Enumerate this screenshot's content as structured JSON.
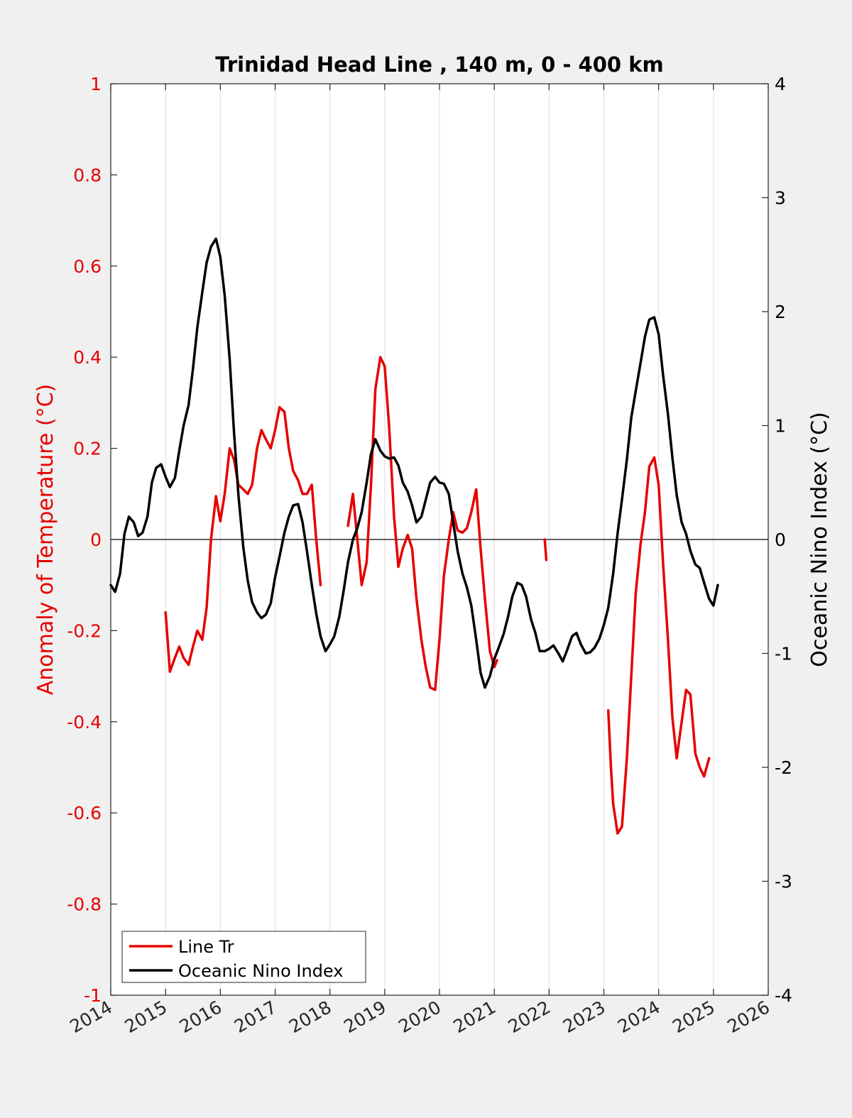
{
  "chart_data": {
    "type": "line",
    "title": "Trinidad Head Line , 140 m, 0 - 400 km",
    "ylabel": "Anomaly of Temperature (°C)",
    "y2label": "Oceanic Nino Index (°C)",
    "xlim": [
      2014,
      2026
    ],
    "ylim": [
      -1,
      1
    ],
    "y2lim": [
      -4,
      4
    ],
    "x_ticks": [
      "2014",
      "2015",
      "2016",
      "2017",
      "2018",
      "2019",
      "2020",
      "2021",
      "2022",
      "2023",
      "2024",
      "2025",
      "2026"
    ],
    "y_ticks": [
      "1",
      "0.8",
      "0.6",
      "0.4",
      "0.2",
      "0",
      "-0.2",
      "-0.4",
      "-0.6",
      "-0.8",
      "-1"
    ],
    "y2_ticks": [
      "4",
      "3",
      "2",
      "1",
      "0",
      "-1",
      "-2",
      "-3",
      "-4"
    ],
    "grid": "vertical",
    "legend": "bottom-left",
    "colors": {
      "line_tr": "#e60000",
      "oni": "#000000",
      "axes": "#262626"
    },
    "series": [
      {
        "name": "Line Tr",
        "axis": "left",
        "color": "#e60000",
        "segments": [
          [
            [
              2015.0,
              -0.16
            ],
            [
              2015.08,
              -0.29
            ],
            [
              2015.17,
              -0.26
            ],
            [
              2015.25,
              -0.235
            ],
            [
              2015.33,
              -0.26
            ],
            [
              2015.42,
              -0.275
            ],
            [
              2015.5,
              -0.235
            ],
            [
              2015.58,
              -0.2
            ],
            [
              2015.67,
              -0.22
            ],
            [
              2015.75,
              -0.15
            ],
            [
              2015.83,
              0.0
            ],
            [
              2015.92,
              0.095
            ],
            [
              2016.0,
              0.04
            ],
            [
              2016.08,
              0.1
            ],
            [
              2016.17,
              0.2
            ],
            [
              2016.25,
              0.175
            ],
            [
              2016.33,
              0.12
            ],
            [
              2016.42,
              0.11
            ],
            [
              2016.5,
              0.1
            ],
            [
              2016.58,
              0.12
            ],
            [
              2016.67,
              0.2
            ],
            [
              2016.75,
              0.24
            ],
            [
              2016.83,
              0.22
            ],
            [
              2016.92,
              0.2
            ],
            [
              2017.0,
              0.24
            ],
            [
              2017.08,
              0.29
            ],
            [
              2017.17,
              0.28
            ],
            [
              2017.25,
              0.2
            ],
            [
              2017.33,
              0.15
            ],
            [
              2017.42,
              0.13
            ],
            [
              2017.5,
              0.1
            ],
            [
              2017.58,
              0.1
            ],
            [
              2017.67,
              0.12
            ],
            [
              2017.75,
              0.0
            ],
            [
              2017.83,
              -0.1
            ]
          ],
          [
            [
              2018.33,
              0.03
            ],
            [
              2018.42,
              0.1
            ],
            [
              2018.5,
              0.0
            ],
            [
              2018.58,
              -0.1
            ],
            [
              2018.67,
              -0.05
            ],
            [
              2018.75,
              0.12
            ],
            [
              2018.83,
              0.33
            ],
            [
              2018.92,
              0.4
            ],
            [
              2019.0,
              0.38
            ],
            [
              2019.08,
              0.25
            ],
            [
              2019.17,
              0.05
            ],
            [
              2019.25,
              -0.06
            ],
            [
              2019.33,
              -0.02
            ],
            [
              2019.42,
              0.01
            ],
            [
              2019.5,
              -0.02
            ],
            [
              2019.58,
              -0.13
            ],
            [
              2019.67,
              -0.22
            ],
            [
              2019.75,
              -0.28
            ],
            [
              2019.83,
              -0.325
            ],
            [
              2019.92,
              -0.33
            ],
            [
              2020.0,
              -0.22
            ],
            [
              2020.08,
              -0.08
            ],
            [
              2020.17,
              0.0
            ],
            [
              2020.25,
              0.06
            ],
            [
              2020.33,
              0.02
            ],
            [
              2020.42,
              0.015
            ],
            [
              2020.5,
              0.025
            ],
            [
              2020.58,
              0.06
            ],
            [
              2020.67,
              0.11
            ],
            [
              2020.75,
              -0.02
            ],
            [
              2020.83,
              -0.13
            ],
            [
              2020.92,
              -0.245
            ],
            [
              2021.0,
              -0.28
            ],
            [
              2021.05,
              -0.265
            ]
          ],
          [
            [
              2021.92,
              -0.0
            ],
            [
              2021.95,
              -0.045
            ]
          ],
          [
            [
              2023.08,
              -0.375
            ],
            [
              2023.13,
              -0.5
            ],
            [
              2023.17,
              -0.58
            ],
            [
              2023.25,
              -0.645
            ],
            [
              2023.33,
              -0.63
            ],
            [
              2023.42,
              -0.48
            ],
            [
              2023.5,
              -0.3
            ],
            [
              2023.58,
              -0.12
            ],
            [
              2023.67,
              -0.01
            ],
            [
              2023.75,
              0.06
            ],
            [
              2023.83,
              0.16
            ],
            [
              2023.92,
              0.18
            ],
            [
              2024.0,
              0.12
            ],
            [
              2024.08,
              -0.05
            ],
            [
              2024.17,
              -0.22
            ],
            [
              2024.25,
              -0.39
            ],
            [
              2024.33,
              -0.48
            ],
            [
              2024.42,
              -0.4
            ],
            [
              2024.5,
              -0.33
            ],
            [
              2024.58,
              -0.34
            ],
            [
              2024.67,
              -0.47
            ],
            [
              2024.75,
              -0.5
            ],
            [
              2024.83,
              -0.52
            ],
            [
              2024.92,
              -0.48
            ]
          ]
        ]
      },
      {
        "name": "Oceanic Nino Index",
        "axis": "right",
        "color": "#000000",
        "segments": [
          [
            [
              2014.0,
              -0.4
            ],
            [
              2014.08,
              -0.46
            ],
            [
              2014.17,
              -0.3
            ],
            [
              2014.25,
              0.05
            ],
            [
              2014.33,
              0.2
            ],
            [
              2014.42,
              0.15
            ],
            [
              2014.5,
              0.03
            ],
            [
              2014.58,
              0.06
            ],
            [
              2014.67,
              0.2
            ],
            [
              2014.75,
              0.5
            ],
            [
              2014.83,
              0.63
            ],
            [
              2014.92,
              0.66
            ],
            [
              2015.0,
              0.55
            ],
            [
              2015.08,
              0.46
            ],
            [
              2015.17,
              0.54
            ],
            [
              2015.25,
              0.78
            ],
            [
              2015.33,
              1.0
            ],
            [
              2015.42,
              1.18
            ],
            [
              2015.5,
              1.5
            ],
            [
              2015.58,
              1.86
            ],
            [
              2015.67,
              2.17
            ],
            [
              2015.75,
              2.43
            ],
            [
              2015.83,
              2.57
            ],
            [
              2015.92,
              2.64
            ],
            [
              2016.0,
              2.48
            ],
            [
              2016.08,
              2.14
            ],
            [
              2016.17,
              1.58
            ],
            [
              2016.25,
              0.94
            ],
            [
              2016.33,
              0.39
            ],
            [
              2016.42,
              -0.07
            ],
            [
              2016.5,
              -0.36
            ],
            [
              2016.58,
              -0.55
            ],
            [
              2016.67,
              -0.64
            ],
            [
              2016.75,
              -0.69
            ],
            [
              2016.83,
              -0.66
            ],
            [
              2016.92,
              -0.56
            ],
            [
              2017.0,
              -0.33
            ],
            [
              2017.08,
              -0.15
            ],
            [
              2017.17,
              0.06
            ],
            [
              2017.25,
              0.2
            ],
            [
              2017.33,
              0.3
            ],
            [
              2017.42,
              0.31
            ],
            [
              2017.5,
              0.15
            ],
            [
              2017.58,
              -0.1
            ],
            [
              2017.67,
              -0.4
            ],
            [
              2017.75,
              -0.65
            ],
            [
              2017.83,
              -0.85
            ],
            [
              2017.92,
              -0.98
            ],
            [
              2018.0,
              -0.92
            ],
            [
              2018.08,
              -0.85
            ],
            [
              2018.17,
              -0.68
            ],
            [
              2018.25,
              -0.45
            ],
            [
              2018.33,
              -0.2
            ],
            [
              2018.42,
              0.0
            ],
            [
              2018.5,
              0.1
            ],
            [
              2018.58,
              0.24
            ],
            [
              2018.67,
              0.5
            ],
            [
              2018.75,
              0.75
            ],
            [
              2018.83,
              0.88
            ],
            [
              2018.92,
              0.78
            ],
            [
              2019.0,
              0.73
            ],
            [
              2019.08,
              0.71
            ],
            [
              2019.17,
              0.72
            ],
            [
              2019.25,
              0.65
            ],
            [
              2019.33,
              0.5
            ],
            [
              2019.42,
              0.42
            ],
            [
              2019.5,
              0.3
            ],
            [
              2019.58,
              0.15
            ],
            [
              2019.67,
              0.2
            ],
            [
              2019.75,
              0.35
            ],
            [
              2019.83,
              0.5
            ],
            [
              2019.92,
              0.55
            ],
            [
              2020.0,
              0.5
            ],
            [
              2020.08,
              0.49
            ],
            [
              2020.17,
              0.4
            ],
            [
              2020.25,
              0.15
            ],
            [
              2020.33,
              -0.1
            ],
            [
              2020.42,
              -0.3
            ],
            [
              2020.5,
              -0.42
            ],
            [
              2020.58,
              -0.58
            ],
            [
              2020.67,
              -0.88
            ],
            [
              2020.75,
              -1.17
            ],
            [
              2020.83,
              -1.3
            ],
            [
              2020.92,
              -1.2
            ],
            [
              2021.0,
              -1.05
            ],
            [
              2021.08,
              -0.95
            ],
            [
              2021.17,
              -0.83
            ],
            [
              2021.25,
              -0.68
            ],
            [
              2021.33,
              -0.5
            ],
            [
              2021.42,
              -0.38
            ],
            [
              2021.5,
              -0.4
            ],
            [
              2021.58,
              -0.5
            ],
            [
              2021.67,
              -0.7
            ],
            [
              2021.75,
              -0.82
            ],
            [
              2021.83,
              -0.98
            ],
            [
              2021.92,
              -0.98
            ],
            [
              2022.0,
              -0.96
            ],
            [
              2022.08,
              -0.93
            ],
            [
              2022.17,
              -1.0
            ],
            [
              2022.25,
              -1.07
            ],
            [
              2022.33,
              -0.97
            ],
            [
              2022.42,
              -0.85
            ],
            [
              2022.5,
              -0.82
            ],
            [
              2022.58,
              -0.92
            ],
            [
              2022.67,
              -1.0
            ],
            [
              2022.75,
              -0.99
            ],
            [
              2022.83,
              -0.95
            ],
            [
              2022.92,
              -0.87
            ],
            [
              2023.0,
              -0.75
            ],
            [
              2023.08,
              -0.6
            ],
            [
              2023.17,
              -0.3
            ],
            [
              2023.25,
              0.05
            ],
            [
              2023.33,
              0.35
            ],
            [
              2023.42,
              0.7
            ],
            [
              2023.5,
              1.07
            ],
            [
              2023.58,
              1.3
            ],
            [
              2023.67,
              1.55
            ],
            [
              2023.75,
              1.78
            ],
            [
              2023.83,
              1.93
            ],
            [
              2023.92,
              1.95
            ],
            [
              2024.0,
              1.8
            ],
            [
              2024.08,
              1.45
            ],
            [
              2024.17,
              1.1
            ],
            [
              2024.25,
              0.72
            ],
            [
              2024.33,
              0.39
            ],
            [
              2024.42,
              0.15
            ],
            [
              2024.5,
              0.05
            ],
            [
              2024.58,
              -0.1
            ],
            [
              2024.67,
              -0.22
            ],
            [
              2024.75,
              -0.25
            ],
            [
              2024.83,
              -0.38
            ],
            [
              2024.92,
              -0.52
            ],
            [
              2025.0,
              -0.58
            ],
            [
              2025.08,
              -0.4
            ]
          ]
        ]
      }
    ]
  }
}
